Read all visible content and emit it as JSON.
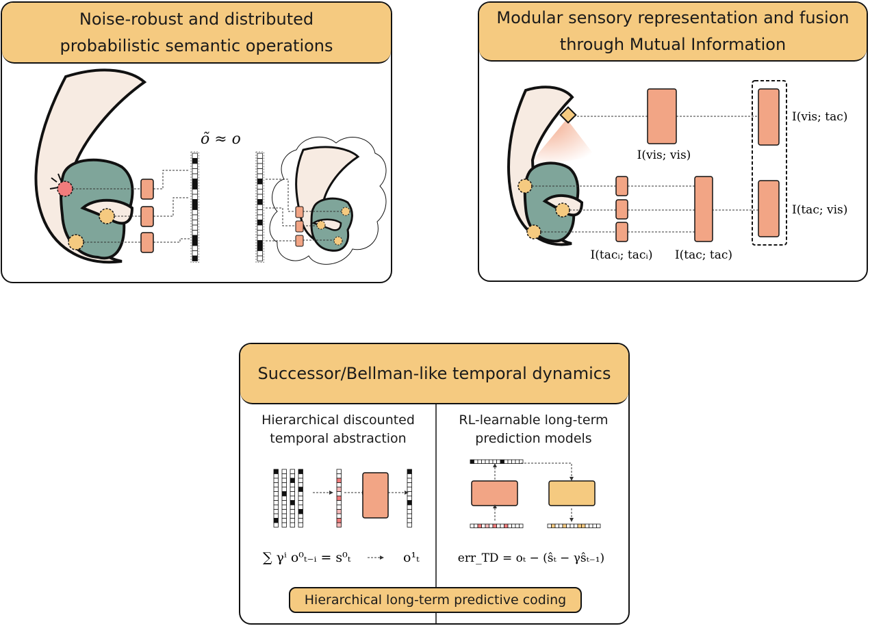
{
  "panels": {
    "noise": {
      "title_line1": "Noise-robust and distributed",
      "title_line2": "probabilistic semantic operations",
      "approx_label": "õ ≈ o"
    },
    "modular": {
      "title_line1": "Modular sensory representation and fusion",
      "title_line2": "through Mutual Information",
      "labels": {
        "vis_vis": "I(vis; vis)",
        "vis_tac": "I(vis; tac)",
        "tac_vis": "I(tac; vis)",
        "tac_tac": "I(tac; tac)",
        "taci_taci": "I(tacᵢ; tacᵢ)"
      }
    },
    "successor": {
      "title": "Successor/Bellman-like temporal dynamics",
      "left_sub_line1": "Hierarchical discounted",
      "left_sub_line2": "temporal abstraction",
      "right_sub_line1": "RL-learnable long-term",
      "right_sub_line2": "prediction models",
      "sum_formula": "∑ γⁱ o⁰ₜ₋ᵢ = s⁰ₜ",
      "o_label": "o¹ₜ",
      "err_formula": "err_TD = oₜ − (ŝₜ − γŝₜ₋₁)",
      "bottom_pill": "Hierarchical long-term predictive coding"
    }
  },
  "colors": {
    "header": "#f5ca80",
    "salmon": "#f2a585",
    "teal": "#7fa59a",
    "skin": "#f7ebe2",
    "node_orange": "#f5ca80",
    "node_red": "#f07c7c"
  }
}
